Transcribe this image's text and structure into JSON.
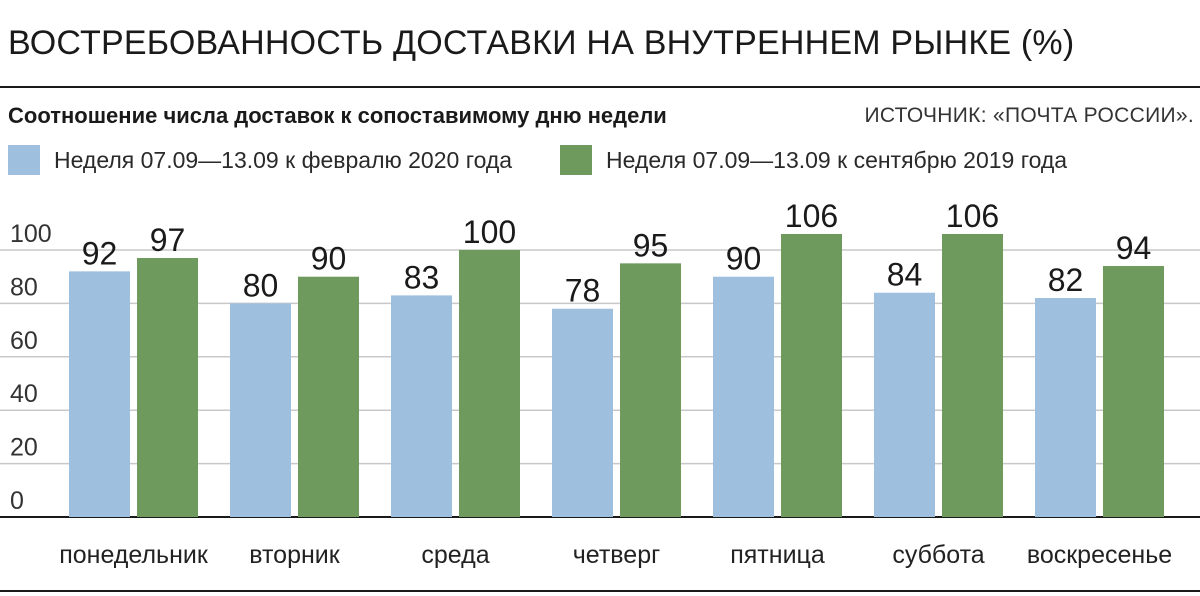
{
  "chart_data": {
    "type": "bar",
    "title": "ВОСТРЕБОВАННОСТЬ ДОСТАВКИ НА ВНУТРЕННЕМ РЫНКЕ (%)",
    "subtitle": "Соотношение числа доставок к сопоставимому дню недели",
    "source": "ИСТОЧНИК: «ПОЧТА РОССИИ».",
    "categories": [
      "понедельник",
      "вторник",
      "среда",
      "четверг",
      "пятница",
      "суббота",
      "воскресенье"
    ],
    "series": [
      {
        "name": "Неделя 07.09—13.09 к февралю 2020 года",
        "color": "#9fbfdf",
        "values": [
          92,
          80,
          83,
          78,
          90,
          84,
          82
        ]
      },
      {
        "name": "Неделя 07.09—13.09 к сентябрю 2019 года",
        "color": "#6f9a5e",
        "values": [
          97,
          90,
          100,
          95,
          106,
          106,
          94
        ]
      }
    ],
    "yticks": [
      0,
      20,
      40,
      60,
      80,
      100
    ],
    "ylim": [
      0,
      106
    ],
    "grid": true,
    "legend_position": "top-left"
  }
}
